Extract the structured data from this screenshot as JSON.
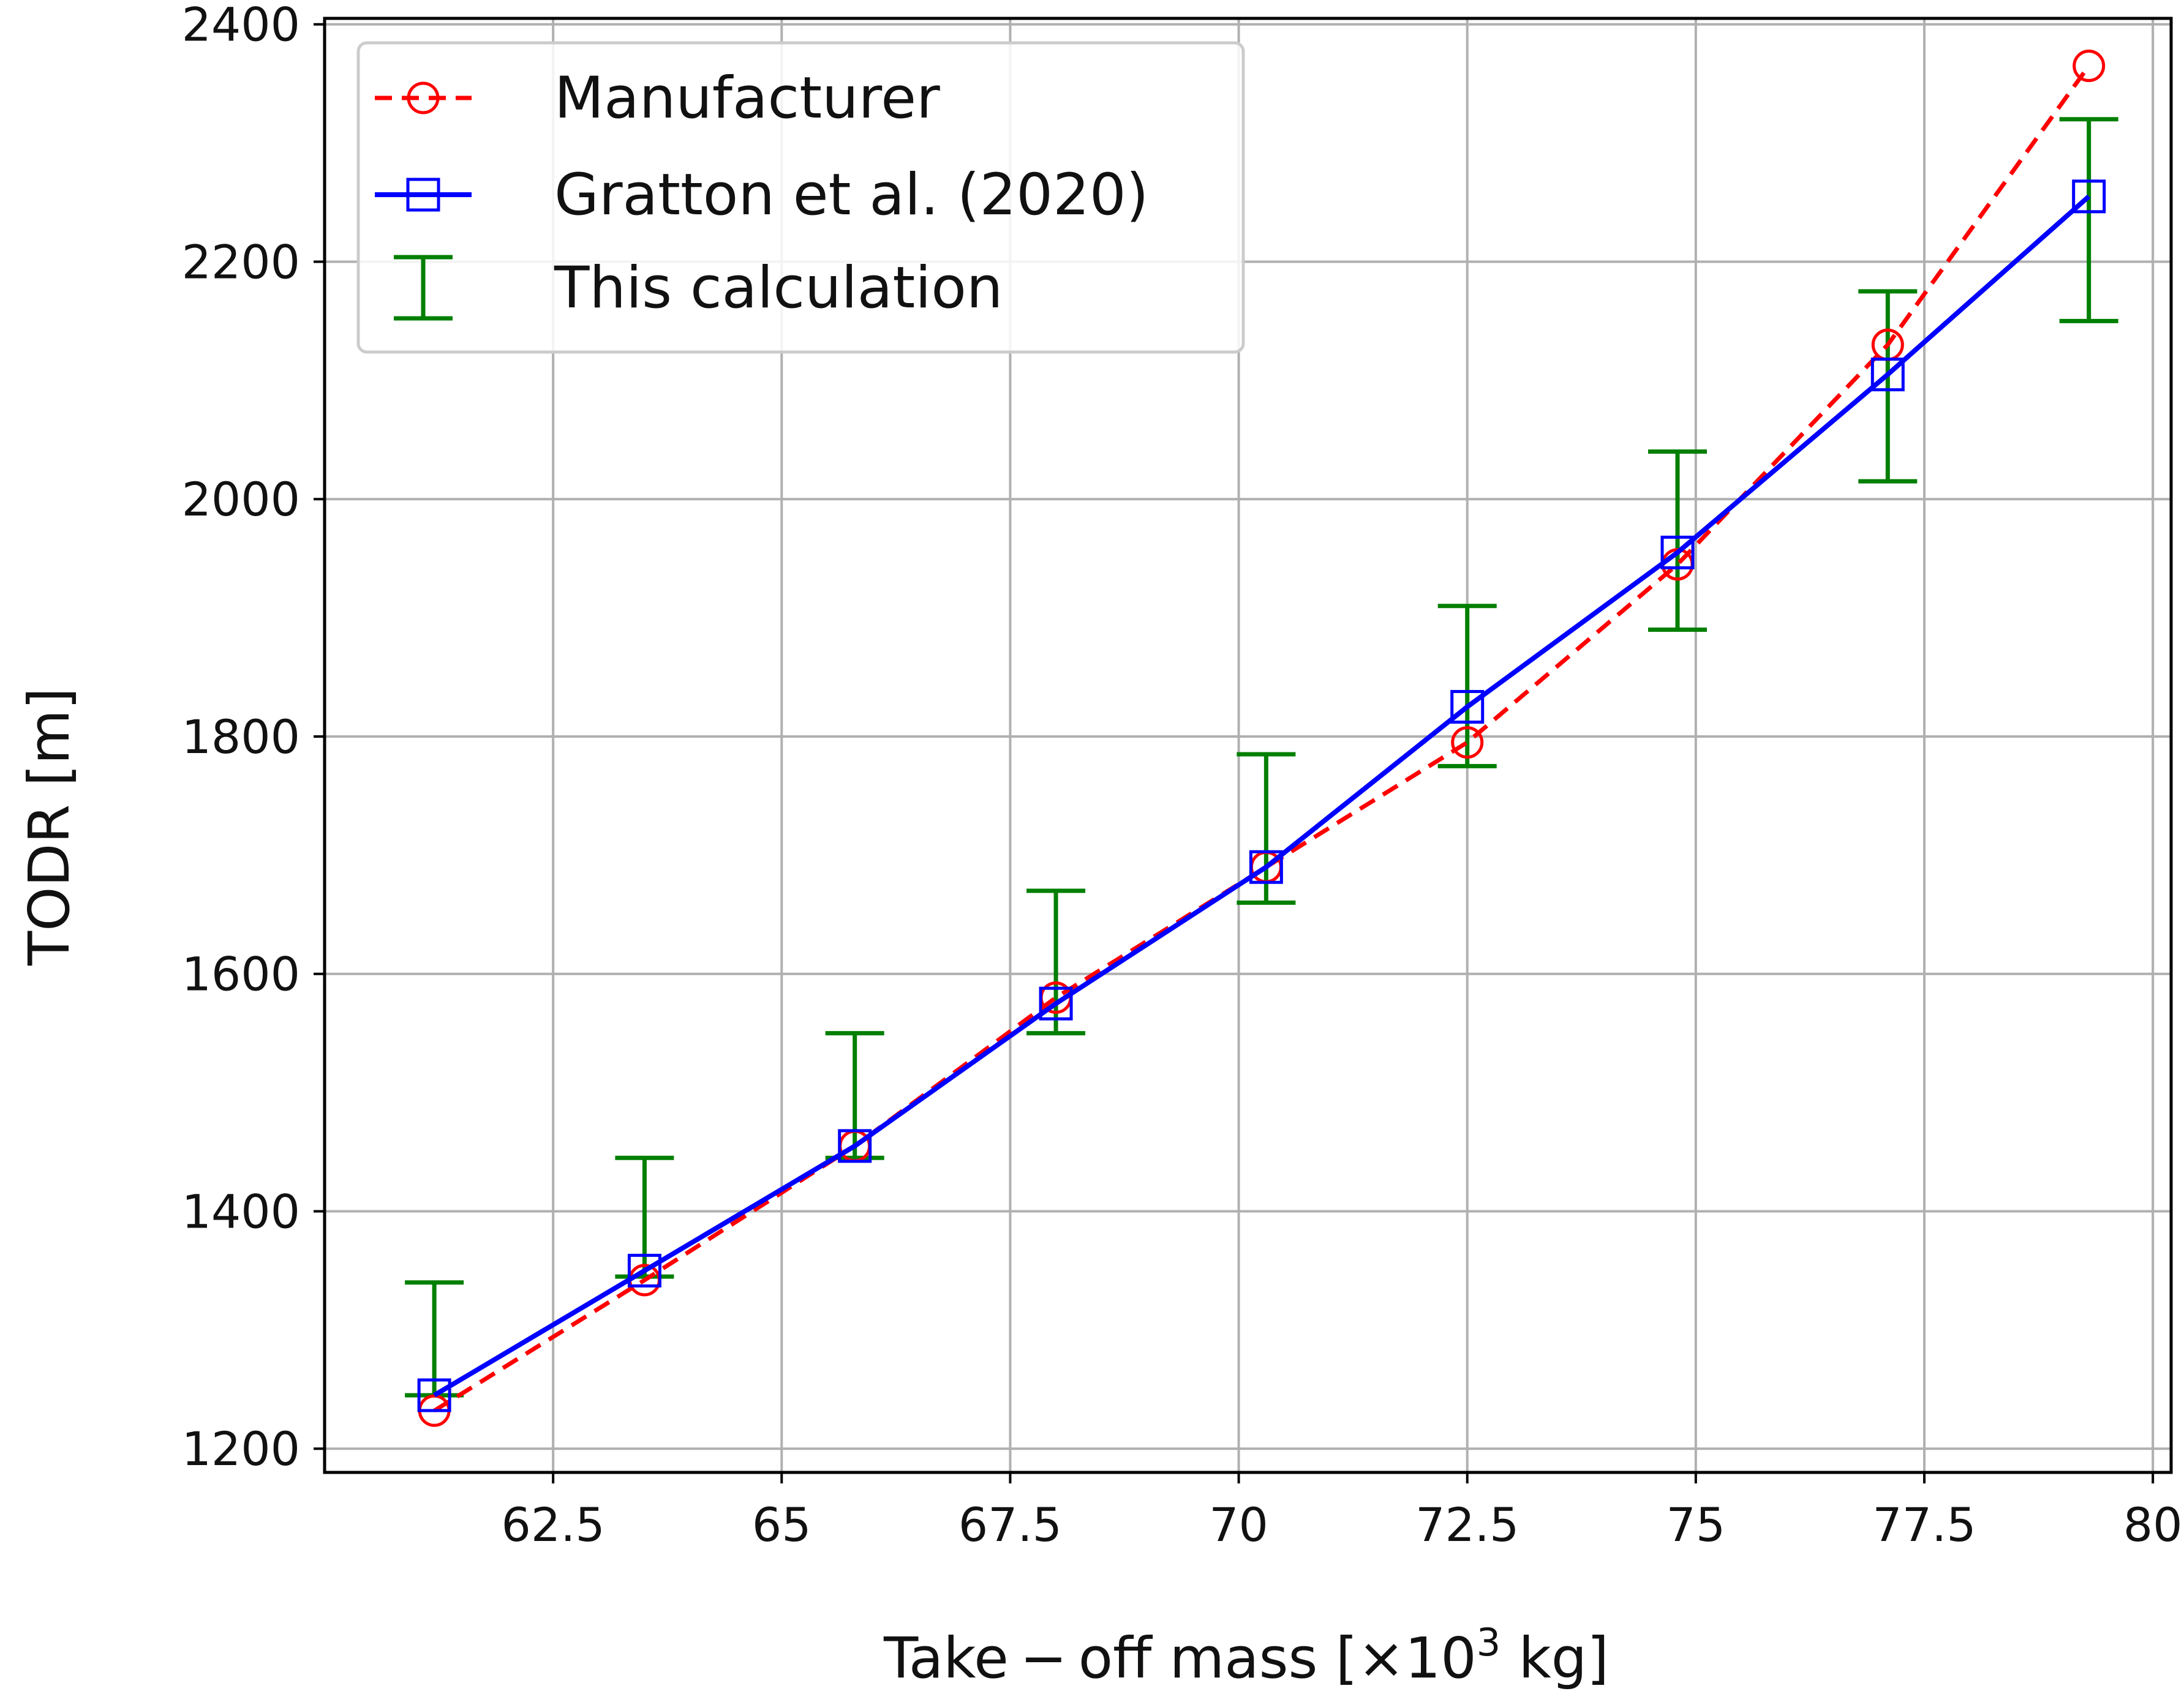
{
  "chart_data": {
    "type": "line",
    "xlabel": "Take − off mass [×10",
    "xlabel_sup": "3",
    "xlabel_tail": " kg]",
    "ylabel": "TODR [m]",
    "xlim": [
      60.0,
      80.2
    ],
    "ylim": [
      1180,
      2405
    ],
    "x_ticks": [
      62.5,
      65,
      67.5,
      70,
      72.5,
      75,
      77.5,
      80
    ],
    "x_tick_labels": [
      "62.5",
      "65",
      "67.5",
      "70",
      "72.5",
      "75",
      "77.5",
      "80"
    ],
    "y_ticks": [
      1200,
      1400,
      1600,
      1800,
      2000,
      2200,
      2400
    ],
    "y_tick_labels": [
      "1200",
      "1400",
      "1600",
      "1800",
      "2000",
      "2200",
      "2400"
    ],
    "grid": true,
    "legend_position": "top-left",
    "x": [
      61.2,
      63.5,
      65.8,
      68.0,
      70.3,
      72.5,
      74.8,
      77.1,
      79.3
    ],
    "series": [
      {
        "name": "Manufacturer",
        "style": "dashed-circle",
        "color": "#ff0000",
        "values": [
          1232,
          1342,
          1455,
          1580,
          1690,
          1795,
          1945,
          2130,
          2365
        ]
      },
      {
        "name": "Gratton et al. (2020)",
        "style": "solid-square",
        "color": "#0000ff",
        "values": [
          1245,
          1350,
          1455,
          1575,
          1690,
          1825,
          1955,
          2105,
          2255
        ]
      },
      {
        "name": "This calculation",
        "style": "errorbar",
        "color": "#007f00",
        "lower": [
          1245,
          1345,
          1445,
          1550,
          1660,
          1775,
          1890,
          2015,
          2150
        ],
        "upper": [
          1340,
          1445,
          1550,
          1670,
          1785,
          1910,
          2040,
          2175,
          2320
        ]
      }
    ]
  }
}
